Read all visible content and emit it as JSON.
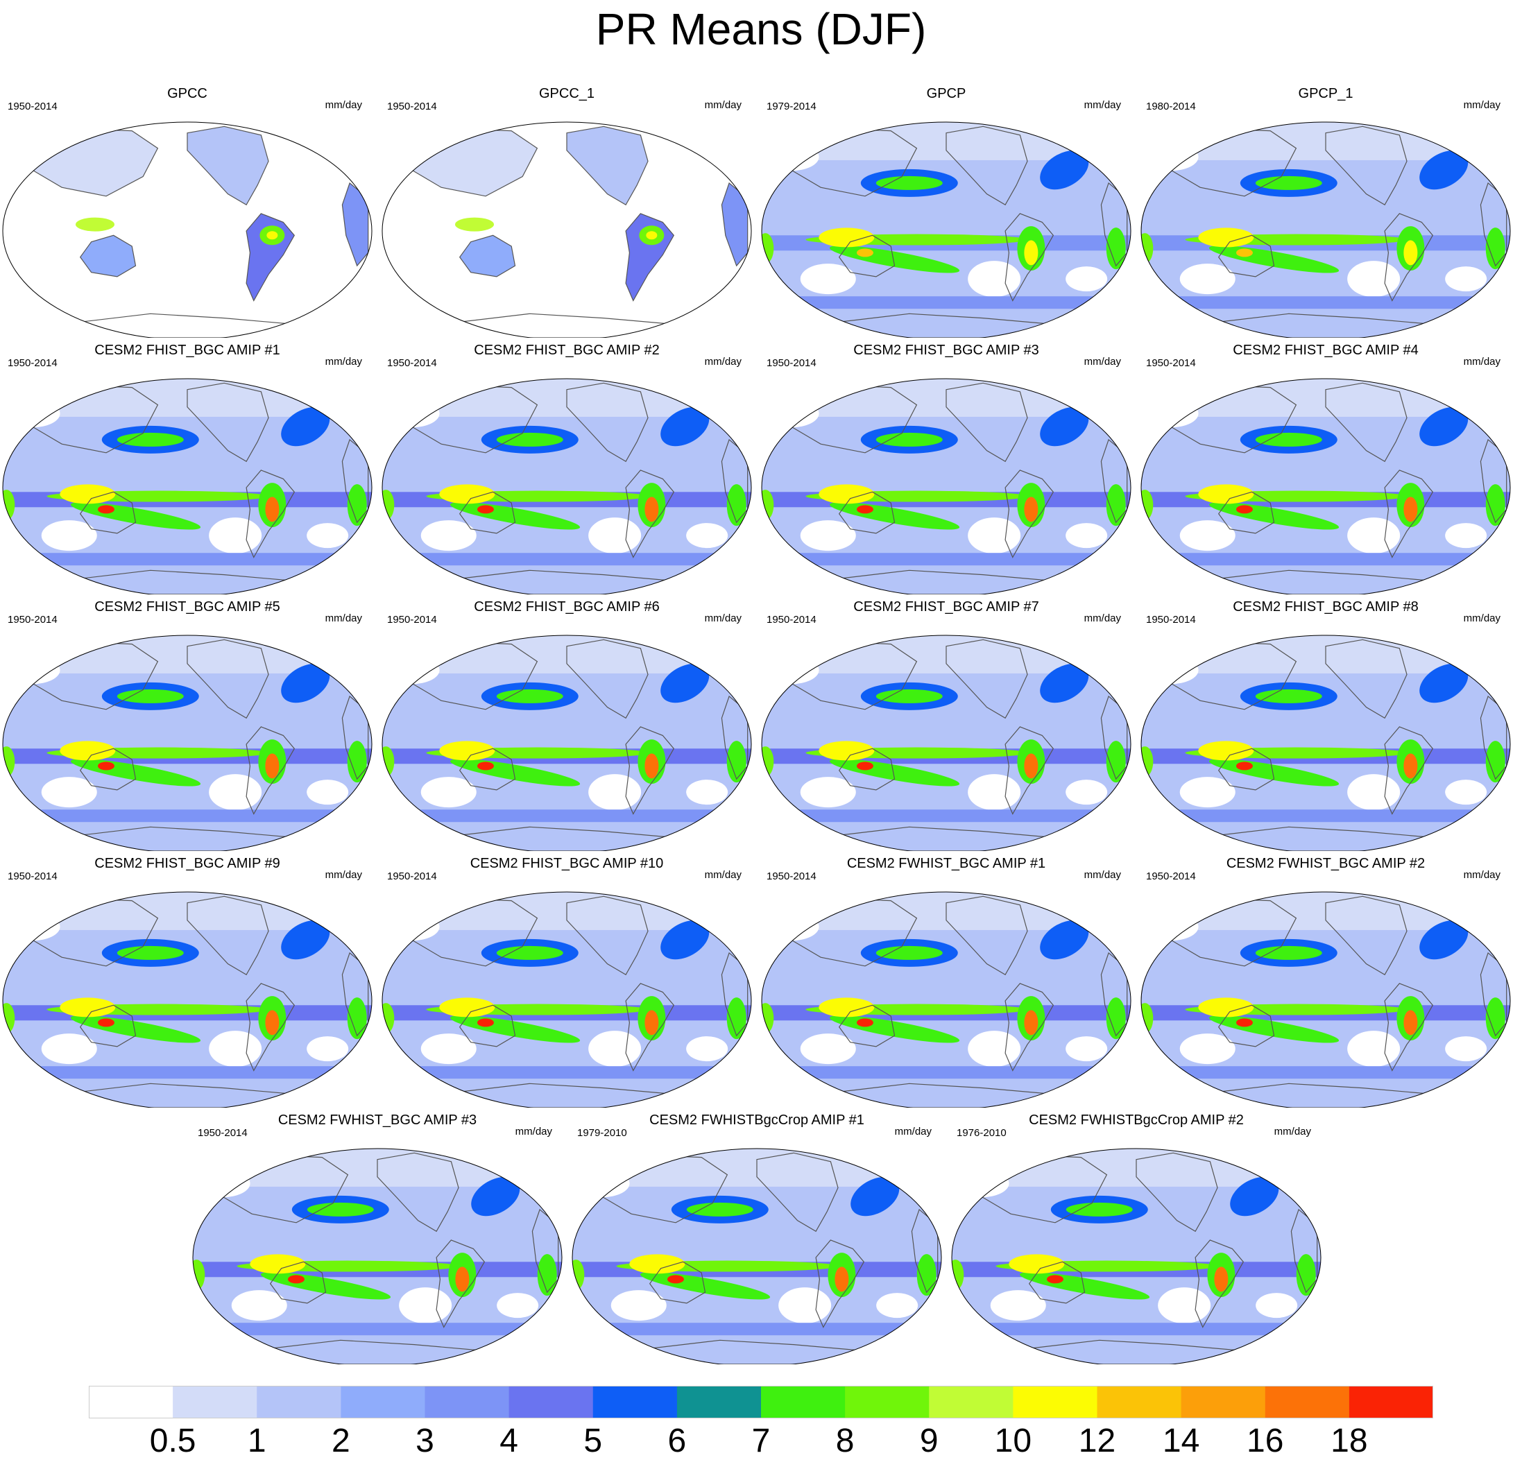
{
  "figure": {
    "title": "PR Means (DJF)"
  },
  "panels": [
    {
      "title": "GPCC",
      "years": "1950-2014",
      "units": "mm/day",
      "kind": "obs_land"
    },
    {
      "title": "GPCC_1",
      "years": "1950-2014",
      "units": "mm/day",
      "kind": "obs_land"
    },
    {
      "title": "GPCP",
      "years": "1979-2014",
      "units": "mm/day",
      "kind": "obs_global"
    },
    {
      "title": "GPCP_1",
      "years": "1980-2014",
      "units": "mm/day",
      "kind": "obs_global"
    },
    {
      "title": "CESM2 FHIST_BGC AMIP #1",
      "years": "1950-2014",
      "units": "mm/day",
      "kind": "model"
    },
    {
      "title": "CESM2 FHIST_BGC AMIP #2",
      "years": "1950-2014",
      "units": "mm/day",
      "kind": "model"
    },
    {
      "title": "CESM2 FHIST_BGC AMIP #3",
      "years": "1950-2014",
      "units": "mm/day",
      "kind": "model"
    },
    {
      "title": "CESM2 FHIST_BGC AMIP #4",
      "years": "1950-2014",
      "units": "mm/day",
      "kind": "model"
    },
    {
      "title": "CESM2 FHIST_BGC AMIP #5",
      "years": "1950-2014",
      "units": "mm/day",
      "kind": "model"
    },
    {
      "title": "CESM2 FHIST_BGC AMIP #6",
      "years": "1950-2014",
      "units": "mm/day",
      "kind": "model"
    },
    {
      "title": "CESM2 FHIST_BGC AMIP #7",
      "years": "1950-2014",
      "units": "mm/day",
      "kind": "model"
    },
    {
      "title": "CESM2 FHIST_BGC AMIP #8",
      "years": "1950-2014",
      "units": "mm/day",
      "kind": "model"
    },
    {
      "title": "CESM2 FHIST_BGC AMIP #9",
      "years": "1950-2014",
      "units": "mm/day",
      "kind": "model"
    },
    {
      "title": "CESM2 FHIST_BGC AMIP #10",
      "years": "1950-2014",
      "units": "mm/day",
      "kind": "model"
    },
    {
      "title": "CESM2 FWHIST_BGC AMIP #1",
      "years": "1950-2014",
      "units": "mm/day",
      "kind": "model"
    },
    {
      "title": "CESM2 FWHIST_BGC AMIP #2",
      "years": "1950-2014",
      "units": "mm/day",
      "kind": "model"
    },
    {
      "title": "CESM2 FWHIST_BGC AMIP #3",
      "years": "1950-2014",
      "units": "mm/day",
      "kind": "model"
    },
    {
      "title": "CESM2 FWHISTBgcCrop AMIP #1",
      "years": "1979-2010",
      "units": "mm/day",
      "kind": "model"
    },
    {
      "title": "CESM2 FWHISTBgcCrop AMIP #2",
      "years": "1976-2010",
      "units": "mm/day",
      "kind": "model"
    }
  ],
  "colorbar": {
    "colors": [
      "#ffffff",
      "#d3dcf8",
      "#b4c4f8",
      "#8facfb",
      "#7d94f6",
      "#6a74f0",
      "#0e5ef6",
      "#0f9292",
      "#3ff00f",
      "#70f50a",
      "#c1fc35",
      "#fcfc03",
      "#fbc307",
      "#fc9f0a",
      "#fc7208",
      "#fa2305"
    ],
    "labels": [
      "0.5",
      "1",
      "2",
      "3",
      "4",
      "5",
      "6",
      "7",
      "8",
      "9",
      "10",
      "12",
      "14",
      "16",
      "18"
    ]
  }
}
